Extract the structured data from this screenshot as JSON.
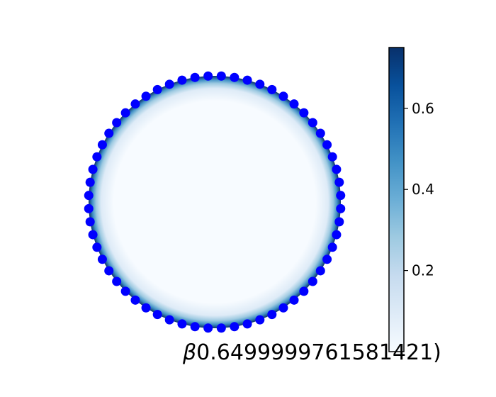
{
  "chart_data": {
    "type": "scatter",
    "description_free": true,
    "marker_color": "#0000ff",
    "colormap": "Blues",
    "colormap_stops": [
      "#f7fbff",
      "#deebf7",
      "#c6dbef",
      "#9ecae1",
      "#6baed6",
      "#4292c6",
      "#2171b5",
      "#08519c",
      "#08306b"
    ],
    "n_points": 60,
    "circle_radius": 1.0,
    "colorbar": {
      "min": 0.0,
      "max": 0.75,
      "ticks": [
        0.2,
        0.4,
        0.6
      ],
      "tick_labels": [
        "0.2",
        "0.4",
        "0.6"
      ]
    },
    "caption": {
      "symbol": "β",
      "value": "0.6499999761581421)"
    },
    "axes_visible": false
  }
}
